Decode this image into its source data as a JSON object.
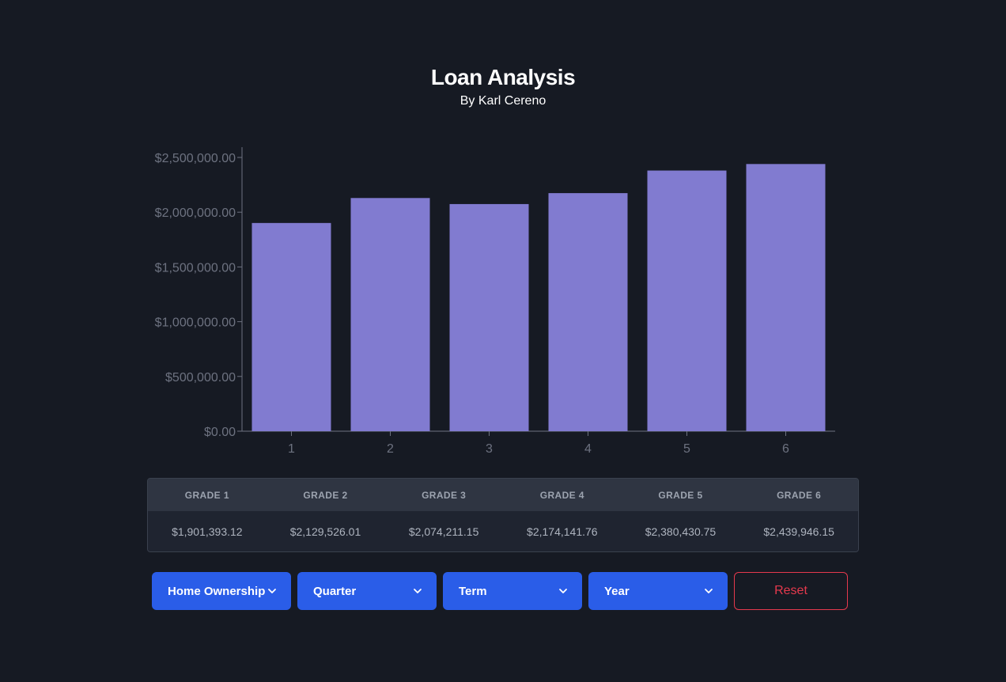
{
  "header": {
    "title": "Loan Analysis",
    "subtitle": "By Karl Cereno"
  },
  "colors": {
    "background": "#161a23",
    "bar": "#817bd0",
    "accent": "#2a5de8",
    "reset": "#e5394d",
    "axis": "#6d7280"
  },
  "chart_data": {
    "type": "bar",
    "title": "",
    "xlabel": "",
    "ylabel": "",
    "categories": [
      "1",
      "2",
      "3",
      "4",
      "5",
      "6"
    ],
    "values": [
      1901393.12,
      2129526.01,
      2074211.15,
      2174141.76,
      2380430.75,
      2439946.15
    ],
    "ylim": [
      0,
      2500000
    ],
    "yticks": [
      0,
      500000,
      1000000,
      1500000,
      2000000,
      2500000
    ],
    "ytick_labels": [
      "$0.00",
      "$500,000.00",
      "$1,000,000.00",
      "$1,500,000.00",
      "$2,000,000.00",
      "$2,500,000.00"
    ],
    "grid": false,
    "legend": "none"
  },
  "table": {
    "headers": [
      "GRADE 1",
      "GRADE 2",
      "GRADE 3",
      "GRADE 4",
      "GRADE 5",
      "GRADE 6"
    ],
    "values": [
      "$1,901,393.12",
      "$2,129,526.01",
      "$2,074,211.15",
      "$2,174,141.76",
      "$2,380,430.75",
      "$2,439,946.15"
    ]
  },
  "filters": {
    "home_ownership": "Home Ownership",
    "quarter": "Quarter",
    "term": "Term",
    "year": "Year",
    "reset": "Reset",
    "chevron_icon": "chevron-down-icon"
  }
}
